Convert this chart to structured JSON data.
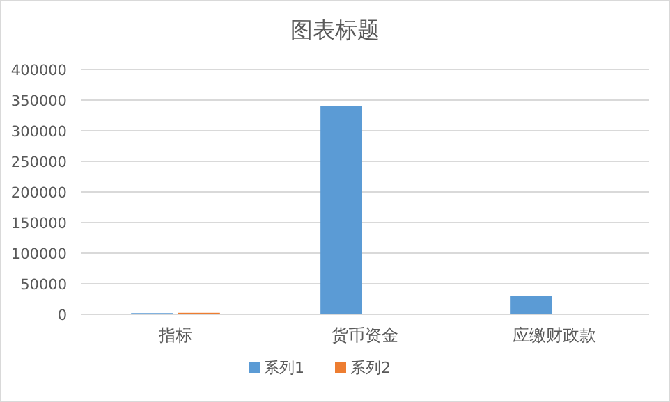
{
  "chart_data": {
    "type": "bar",
    "title": "图表标题",
    "categories": [
      "指标",
      "货币资金",
      "应缴财政款"
    ],
    "series": [
      {
        "name": "系列1",
        "color": "#5b9bd5",
        "values": [
          2000,
          340000,
          30000
        ]
      },
      {
        "name": "系列2",
        "color": "#ed7d31",
        "values": [
          2500,
          0,
          0
        ]
      }
    ],
    "ylim": [
      0,
      400000
    ],
    "yticks": [
      0,
      50000,
      100000,
      150000,
      200000,
      250000,
      300000,
      350000,
      400000
    ],
    "grid": "y",
    "legend": "bottom"
  }
}
